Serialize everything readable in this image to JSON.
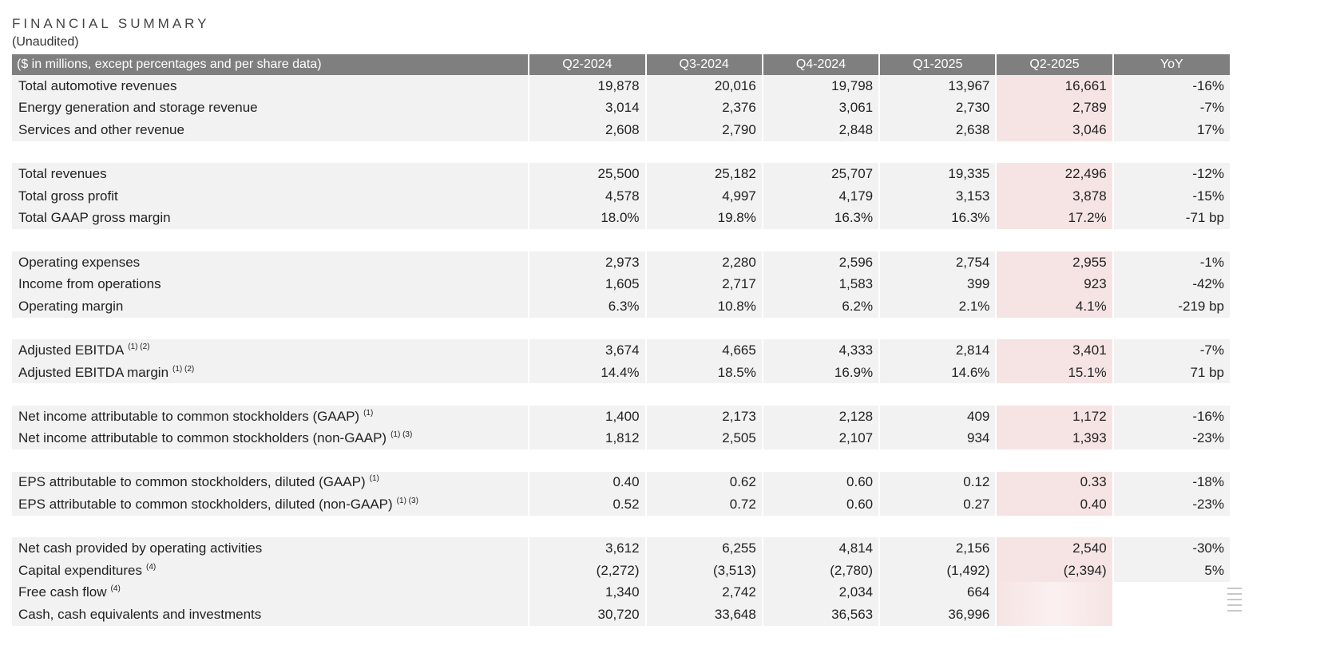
{
  "header": {
    "title": "FINANCIAL SUMMARY",
    "subtitle": "(Unaudited)"
  },
  "table": {
    "columns": [
      "($ in millions, except percentages and per share data)",
      "Q2-2024",
      "Q3-2024",
      "Q4-2024",
      "Q1-2025",
      "Q2-2025",
      "YoY"
    ],
    "highlight_color": "#f6e4e4",
    "header_bg": "#7f7f7f",
    "rows": [
      {
        "label": "Total automotive revenues",
        "sup": "",
        "values": [
          "19,878",
          "20,016",
          "19,798",
          "13,967",
          "16,661",
          "-16%"
        ]
      },
      {
        "label": "Energy generation and storage revenue",
        "sup": "",
        "values": [
          "3,014",
          "2,376",
          "3,061",
          "2,730",
          "2,789",
          "-7%"
        ]
      },
      {
        "label": "Services and other revenue",
        "sup": "",
        "values": [
          "2,608",
          "2,790",
          "2,848",
          "2,638",
          "3,046",
          "17%"
        ]
      },
      {
        "spacer": true
      },
      {
        "label": "Total revenues",
        "sup": "",
        "values": [
          "25,500",
          "25,182",
          "25,707",
          "19,335",
          "22,496",
          "-12%"
        ]
      },
      {
        "label": "Total gross profit",
        "sup": "",
        "values": [
          "4,578",
          "4,997",
          "4,179",
          "3,153",
          "3,878",
          "-15%"
        ]
      },
      {
        "label": "Total GAAP gross margin",
        "sup": "",
        "values": [
          "18.0%",
          "19.8%",
          "16.3%",
          "16.3%",
          "17.2%",
          "-71 bp"
        ]
      },
      {
        "spacer": true
      },
      {
        "label": "Operating expenses",
        "sup": "",
        "values": [
          "2,973",
          "2,280",
          "2,596",
          "2,754",
          "2,955",
          "-1%"
        ]
      },
      {
        "label": "Income from operations",
        "sup": "",
        "values": [
          "1,605",
          "2,717",
          "1,583",
          "399",
          "923",
          "-42%"
        ]
      },
      {
        "label": "Operating margin",
        "sup": "",
        "values": [
          "6.3%",
          "10.8%",
          "6.2%",
          "2.1%",
          "4.1%",
          "-219 bp"
        ]
      },
      {
        "spacer": true
      },
      {
        "label": "Adjusted EBITDA",
        "sup": "(1) (2)",
        "values": [
          "3,674",
          "4,665",
          "4,333",
          "2,814",
          "3,401",
          "-7%"
        ]
      },
      {
        "label": "Adjusted EBITDA margin",
        "sup": "(1) (2)",
        "values": [
          "14.4%",
          "18.5%",
          "16.9%",
          "14.6%",
          "15.1%",
          "71 bp"
        ]
      },
      {
        "spacer": true
      },
      {
        "label": "Net income attributable to common stockholders (GAAP)",
        "sup": "(1)",
        "values": [
          "1,400",
          "2,173",
          "2,128",
          "409",
          "1,172",
          "-16%"
        ]
      },
      {
        "label": "Net income attributable to common stockholders (non-GAAP)",
        "sup": "(1) (3)",
        "values": [
          "1,812",
          "2,505",
          "2,107",
          "934",
          "1,393",
          "-23%"
        ]
      },
      {
        "spacer": true
      },
      {
        "label": "EPS attributable to common stockholders, diluted (GAAP)",
        "sup": "(1)",
        "values": [
          "0.40",
          "0.62",
          "0.60",
          "0.12",
          "0.33",
          "-18%"
        ]
      },
      {
        "label": "EPS attributable to common stockholders, diluted (non-GAAP)",
        "sup": "(1) (3)",
        "values": [
          "0.52",
          "0.72",
          "0.60",
          "0.27",
          "0.40",
          "-23%"
        ]
      },
      {
        "spacer": true
      },
      {
        "label": "Net cash provided by operating activities",
        "sup": "",
        "values": [
          "3,612",
          "6,255",
          "4,814",
          "2,156",
          "2,540",
          "-30%"
        ]
      },
      {
        "label": "Capital expenditures",
        "sup": "(4)",
        "values": [
          "(2,272)",
          "(3,513)",
          "(2,780)",
          "(1,492)",
          "(2,394)",
          "5%"
        ]
      },
      {
        "label": "Free cash flow",
        "sup": "(4)",
        "values": [
          "1,340",
          "2,742",
          "2,034",
          "664",
          "",
          ""
        ],
        "obscured": true
      },
      {
        "label": "Cash, cash equivalents and investments",
        "sup": "",
        "values": [
          "30,720",
          "33,648",
          "36,563",
          "36,996",
          "",
          ""
        ],
        "obscured": true
      }
    ]
  },
  "icons": {
    "side_handle": "drag-lines-icon"
  }
}
